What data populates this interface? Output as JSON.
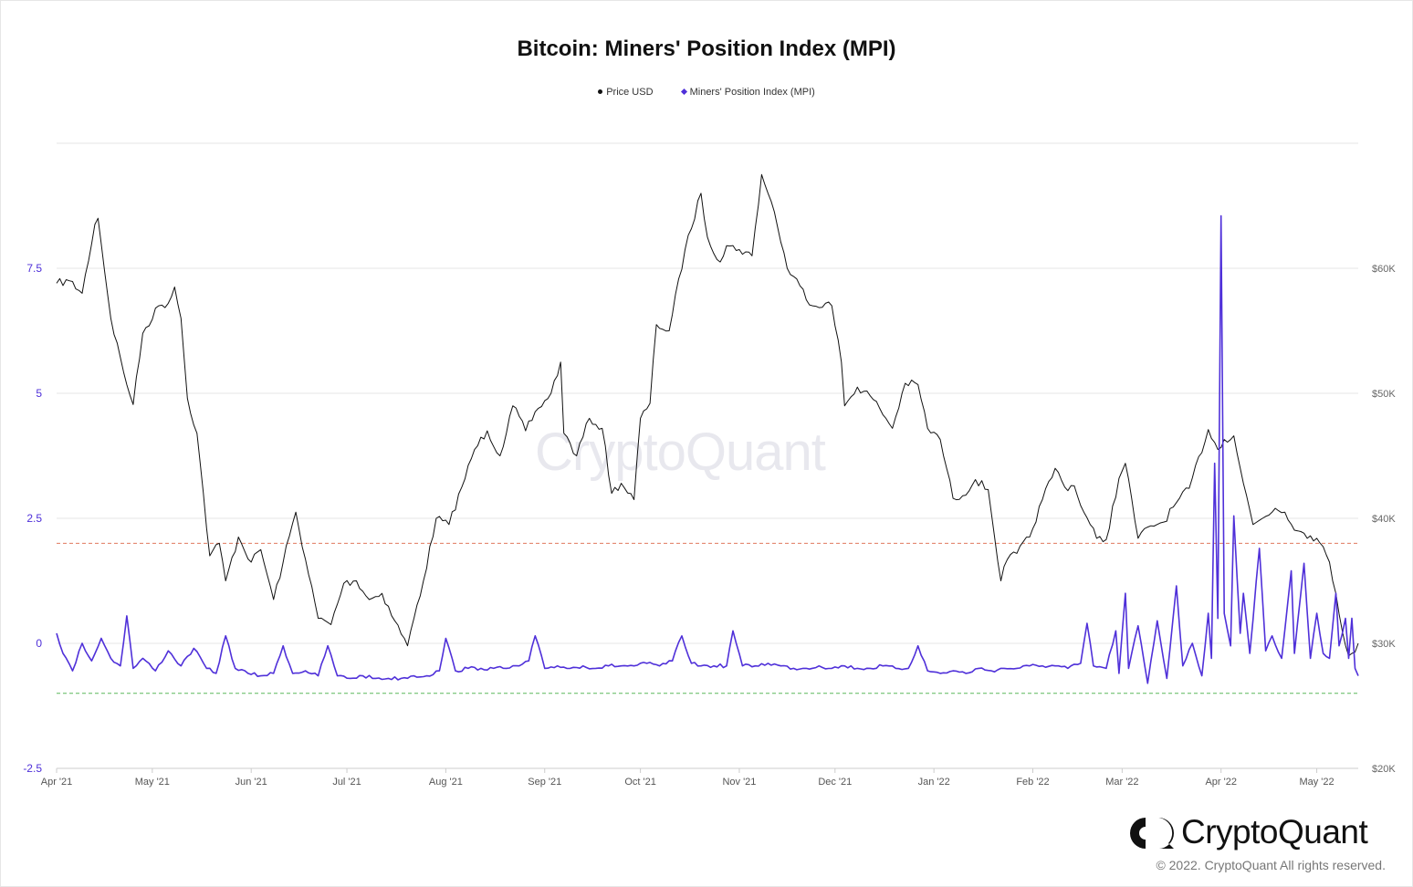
{
  "chart_data": {
    "type": "line",
    "title": "Bitcoin: Miners' Position Index (MPI)",
    "legend_placement": "top-center",
    "x_ticks": [
      "Apr '21",
      "May '21",
      "Jun '21",
      "Jul '21",
      "Aug '21",
      "Sep '21",
      "Oct '21",
      "Nov '21",
      "Dec '21",
      "Jan '22",
      "Feb '22",
      "Mar '22",
      "Apr '22",
      "May '22"
    ],
    "x_range": [
      "2021-04-01",
      "2022-05-14"
    ],
    "y_left": {
      "ticks": [
        "-2.5",
        "0",
        "2.5",
        "5",
        "7.5"
      ],
      "range": [
        -2.5,
        10
      ]
    },
    "y_right": {
      "ticks": [
        "$20K",
        "$30K",
        "$40K",
        "$50K",
        "$60K"
      ],
      "range": [
        20000,
        70000
      ]
    },
    "reference_lines": [
      {
        "axis": "left",
        "value": 2.0,
        "color": "#e07a5f",
        "style": "dashed"
      },
      {
        "axis": "left",
        "value": -1.0,
        "color": "#5cb85c",
        "style": "dashed"
      }
    ],
    "grid": "horizontal",
    "series": [
      {
        "name": "Price USD",
        "axis": "right",
        "color": "#111111",
        "points": [
          [
            "2021-04-01",
            58800
          ],
          [
            "2021-04-05",
            59000
          ],
          [
            "2021-04-09",
            58000
          ],
          [
            "2021-04-13",
            63500
          ],
          [
            "2021-04-14",
            64000
          ],
          [
            "2021-04-18",
            56000
          ],
          [
            "2021-04-22",
            51700
          ],
          [
            "2021-04-25",
            49100
          ],
          [
            "2021-04-28",
            54800
          ],
          [
            "2021-05-03",
            57000
          ],
          [
            "2021-05-06",
            57200
          ],
          [
            "2021-05-08",
            58500
          ],
          [
            "2021-05-10",
            56000
          ],
          [
            "2021-05-12",
            49600
          ],
          [
            "2021-05-15",
            46800
          ],
          [
            "2021-05-19",
            37000
          ],
          [
            "2021-05-22",
            38000
          ],
          [
            "2021-05-24",
            35000
          ],
          [
            "2021-05-28",
            38500
          ],
          [
            "2021-06-01",
            36500
          ],
          [
            "2021-06-04",
            37500
          ],
          [
            "2021-06-08",
            33500
          ],
          [
            "2021-06-11",
            36500
          ],
          [
            "2021-06-15",
            40500
          ],
          [
            "2021-06-19",
            35500
          ],
          [
            "2021-06-22",
            32000
          ],
          [
            "2021-06-26",
            31500
          ],
          [
            "2021-06-30",
            34800
          ],
          [
            "2021-07-04",
            35000
          ],
          [
            "2021-07-08",
            33500
          ],
          [
            "2021-07-12",
            34000
          ],
          [
            "2021-07-16",
            31800
          ],
          [
            "2021-07-20",
            29800
          ],
          [
            "2021-07-22",
            32000
          ],
          [
            "2021-07-25",
            35000
          ],
          [
            "2021-07-29",
            40000
          ],
          [
            "2021-08-02",
            39500
          ],
          [
            "2021-08-06",
            42500
          ],
          [
            "2021-08-10",
            45500
          ],
          [
            "2021-08-14",
            47000
          ],
          [
            "2021-08-18",
            45000
          ],
          [
            "2021-08-22",
            49000
          ],
          [
            "2021-08-26",
            47000
          ],
          [
            "2021-08-30",
            48800
          ],
          [
            "2021-09-03",
            50000
          ],
          [
            "2021-09-06",
            52500
          ],
          [
            "2021-09-07",
            46800
          ],
          [
            "2021-09-11",
            45000
          ],
          [
            "2021-09-15",
            48000
          ],
          [
            "2021-09-19",
            47200
          ],
          [
            "2021-09-22",
            42000
          ],
          [
            "2021-09-25",
            42800
          ],
          [
            "2021-09-29",
            41500
          ],
          [
            "2021-10-01",
            48000
          ],
          [
            "2021-10-04",
            49200
          ],
          [
            "2021-10-06",
            55500
          ],
          [
            "2021-10-10",
            55000
          ],
          [
            "2021-10-15",
            61500
          ],
          [
            "2021-10-20",
            66000
          ],
          [
            "2021-10-22",
            62500
          ],
          [
            "2021-10-26",
            60500
          ],
          [
            "2021-10-28",
            61800
          ],
          [
            "2021-11-01",
            61500
          ],
          [
            "2021-11-05",
            61000
          ],
          [
            "2021-11-08",
            67500
          ],
          [
            "2021-11-10",
            66000
          ],
          [
            "2021-11-12",
            64500
          ],
          [
            "2021-11-16",
            60000
          ],
          [
            "2021-11-20",
            58600
          ],
          [
            "2021-11-24",
            57000
          ],
          [
            "2021-11-28",
            57200
          ],
          [
            "2021-11-30",
            57000
          ],
          [
            "2021-12-03",
            52500
          ],
          [
            "2021-12-04",
            49000
          ],
          [
            "2021-12-08",
            50500
          ],
          [
            "2021-12-12",
            49800
          ],
          [
            "2021-12-15",
            48800
          ],
          [
            "2021-12-19",
            47200
          ],
          [
            "2021-12-23",
            50800
          ],
          [
            "2021-12-27",
            50700
          ],
          [
            "2021-12-30",
            47200
          ],
          [
            "2022-01-03",
            46300
          ],
          [
            "2022-01-07",
            41600
          ],
          [
            "2022-01-10",
            41800
          ],
          [
            "2022-01-14",
            43100
          ],
          [
            "2022-01-18",
            42300
          ],
          [
            "2022-01-22",
            35000
          ],
          [
            "2022-01-24",
            36700
          ],
          [
            "2022-01-27",
            37200
          ],
          [
            "2022-01-31",
            38500
          ],
          [
            "2022-02-04",
            41500
          ],
          [
            "2022-02-08",
            44000
          ],
          [
            "2022-02-11",
            42500
          ],
          [
            "2022-02-14",
            42600
          ],
          [
            "2022-02-17",
            40500
          ],
          [
            "2022-02-21",
            38400
          ],
          [
            "2022-02-24",
            38300
          ],
          [
            "2022-02-28",
            43200
          ],
          [
            "2022-03-02",
            44400
          ],
          [
            "2022-03-06",
            38400
          ],
          [
            "2022-03-10",
            39400
          ],
          [
            "2022-03-14",
            39700
          ],
          [
            "2022-03-17",
            40900
          ],
          [
            "2022-03-22",
            42400
          ],
          [
            "2022-03-28",
            47100
          ],
          [
            "2022-03-31",
            45500
          ],
          [
            "2022-04-02",
            46300
          ],
          [
            "2022-04-05",
            46600
          ],
          [
            "2022-04-08",
            42800
          ],
          [
            "2022-04-11",
            39500
          ],
          [
            "2022-04-14",
            40000
          ],
          [
            "2022-04-18",
            40800
          ],
          [
            "2022-04-21",
            40500
          ],
          [
            "2022-04-25",
            39000
          ],
          [
            "2022-04-29",
            38600
          ],
          [
            "2022-05-01",
            38400
          ],
          [
            "2022-05-05",
            36500
          ],
          [
            "2022-05-07",
            34000
          ],
          [
            "2022-05-09",
            31000
          ],
          [
            "2022-05-11",
            29000
          ],
          [
            "2022-05-12",
            29200
          ],
          [
            "2022-05-14",
            30000
          ]
        ]
      },
      {
        "name": "Miners' Position Index (MPI)",
        "axis": "left",
        "color": "#4f30d9",
        "points": [
          [
            "2021-04-01",
            0.2
          ],
          [
            "2021-04-03",
            -0.2
          ],
          [
            "2021-04-06",
            -0.55
          ],
          [
            "2021-04-09",
            0.0
          ],
          [
            "2021-04-12",
            -0.35
          ],
          [
            "2021-04-15",
            0.1
          ],
          [
            "2021-04-18",
            -0.3
          ],
          [
            "2021-04-21",
            -0.45
          ],
          [
            "2021-04-23",
            0.55
          ],
          [
            "2021-04-25",
            -0.5
          ],
          [
            "2021-04-28",
            -0.3
          ],
          [
            "2021-05-02",
            -0.55
          ],
          [
            "2021-05-06",
            -0.15
          ],
          [
            "2021-05-10",
            -0.45
          ],
          [
            "2021-05-14",
            -0.1
          ],
          [
            "2021-05-18",
            -0.5
          ],
          [
            "2021-05-21",
            -0.6
          ],
          [
            "2021-05-24",
            0.15
          ],
          [
            "2021-05-27",
            -0.5
          ],
          [
            "2021-05-31",
            -0.6
          ],
          [
            "2021-06-04",
            -0.65
          ],
          [
            "2021-06-08",
            -0.6
          ],
          [
            "2021-06-11",
            -0.05
          ],
          [
            "2021-06-14",
            -0.6
          ],
          [
            "2021-06-18",
            -0.55
          ],
          [
            "2021-06-22",
            -0.65
          ],
          [
            "2021-06-25",
            -0.05
          ],
          [
            "2021-06-28",
            -0.65
          ],
          [
            "2021-07-02",
            -0.7
          ],
          [
            "2021-07-06",
            -0.65
          ],
          [
            "2021-07-10",
            -0.7
          ],
          [
            "2021-07-14",
            -0.7
          ],
          [
            "2021-07-18",
            -0.7
          ],
          [
            "2021-07-22",
            -0.65
          ],
          [
            "2021-07-26",
            -0.65
          ],
          [
            "2021-07-30",
            -0.55
          ],
          [
            "2021-08-01",
            0.1
          ],
          [
            "2021-08-04",
            -0.55
          ],
          [
            "2021-08-08",
            -0.5
          ],
          [
            "2021-08-12",
            -0.5
          ],
          [
            "2021-08-16",
            -0.5
          ],
          [
            "2021-08-20",
            -0.5
          ],
          [
            "2021-08-24",
            -0.45
          ],
          [
            "2021-08-27",
            -0.35
          ],
          [
            "2021-08-29",
            0.15
          ],
          [
            "2021-09-01",
            -0.5
          ],
          [
            "2021-09-05",
            -0.45
          ],
          [
            "2021-09-09",
            -0.5
          ],
          [
            "2021-09-13",
            -0.45
          ],
          [
            "2021-09-17",
            -0.5
          ],
          [
            "2021-09-21",
            -0.45
          ],
          [
            "2021-09-25",
            -0.45
          ],
          [
            "2021-09-29",
            -0.45
          ],
          [
            "2021-10-03",
            -0.4
          ],
          [
            "2021-10-07",
            -0.45
          ],
          [
            "2021-10-11",
            -0.35
          ],
          [
            "2021-10-14",
            0.15
          ],
          [
            "2021-10-17",
            -0.4
          ],
          [
            "2021-10-20",
            -0.45
          ],
          [
            "2021-10-24",
            -0.45
          ],
          [
            "2021-10-28",
            -0.45
          ],
          [
            "2021-10-30",
            0.25
          ],
          [
            "2021-11-02",
            -0.45
          ],
          [
            "2021-11-06",
            -0.45
          ],
          [
            "2021-11-10",
            -0.4
          ],
          [
            "2021-11-14",
            -0.45
          ],
          [
            "2021-11-18",
            -0.5
          ],
          [
            "2021-11-22",
            -0.5
          ],
          [
            "2021-11-26",
            -0.45
          ],
          [
            "2021-11-30",
            -0.5
          ],
          [
            "2021-12-04",
            -0.45
          ],
          [
            "2021-12-08",
            -0.5
          ],
          [
            "2021-12-12",
            -0.5
          ],
          [
            "2021-12-16",
            -0.45
          ],
          [
            "2021-12-20",
            -0.5
          ],
          [
            "2021-12-24",
            -0.5
          ],
          [
            "2021-12-27",
            -0.05
          ],
          [
            "2021-12-30",
            -0.55
          ],
          [
            "2022-01-03",
            -0.6
          ],
          [
            "2022-01-07",
            -0.55
          ],
          [
            "2022-01-11",
            -0.6
          ],
          [
            "2022-01-15",
            -0.5
          ],
          [
            "2022-01-19",
            -0.55
          ],
          [
            "2022-01-23",
            -0.5
          ],
          [
            "2022-01-27",
            -0.5
          ],
          [
            "2022-01-31",
            -0.45
          ],
          [
            "2022-02-04",
            -0.45
          ],
          [
            "2022-02-08",
            -0.45
          ],
          [
            "2022-02-12",
            -0.5
          ],
          [
            "2022-02-16",
            -0.4
          ],
          [
            "2022-02-18",
            0.4
          ],
          [
            "2022-02-20",
            -0.45
          ],
          [
            "2022-02-24",
            -0.5
          ],
          [
            "2022-02-27",
            0.25
          ],
          [
            "2022-02-28",
            -0.6
          ],
          [
            "2022-03-02",
            1.0
          ],
          [
            "2022-03-03",
            -0.5
          ],
          [
            "2022-03-06",
            0.35
          ],
          [
            "2022-03-09",
            -0.8
          ],
          [
            "2022-03-12",
            0.45
          ],
          [
            "2022-03-15",
            -0.7
          ],
          [
            "2022-03-18",
            1.15
          ],
          [
            "2022-03-20",
            -0.45
          ],
          [
            "2022-03-23",
            0.0
          ],
          [
            "2022-03-26",
            -0.65
          ],
          [
            "2022-03-28",
            0.6
          ],
          [
            "2022-03-29",
            -0.3
          ],
          [
            "2022-03-30",
            3.6
          ],
          [
            "2022-03-31",
            0.5
          ],
          [
            "2022-04-01",
            8.55
          ],
          [
            "2022-04-02",
            0.6
          ],
          [
            "2022-04-04",
            -0.05
          ],
          [
            "2022-04-05",
            2.55
          ],
          [
            "2022-04-07",
            0.2
          ],
          [
            "2022-04-08",
            1.0
          ],
          [
            "2022-04-10",
            -0.2
          ],
          [
            "2022-04-13",
            1.9
          ],
          [
            "2022-04-15",
            -0.15
          ],
          [
            "2022-04-17",
            0.15
          ],
          [
            "2022-04-20",
            -0.3
          ],
          [
            "2022-04-23",
            1.45
          ],
          [
            "2022-04-24",
            -0.2
          ],
          [
            "2022-04-27",
            1.6
          ],
          [
            "2022-04-29",
            -0.3
          ],
          [
            "2022-05-01",
            0.6
          ],
          [
            "2022-05-03",
            -0.2
          ],
          [
            "2022-05-05",
            -0.3
          ],
          [
            "2022-05-07",
            1.0
          ],
          [
            "2022-05-08",
            -0.05
          ],
          [
            "2022-05-10",
            0.5
          ],
          [
            "2022-05-11",
            -0.3
          ],
          [
            "2022-05-12",
            0.5
          ],
          [
            "2022-05-13",
            -0.5
          ],
          [
            "2022-05-14",
            -0.65
          ]
        ]
      }
    ]
  },
  "watermark": "CryptoQuant",
  "brand": {
    "name": "CryptoQuant",
    "copyright": "© 2022. CryptoQuant All rights reserved."
  }
}
